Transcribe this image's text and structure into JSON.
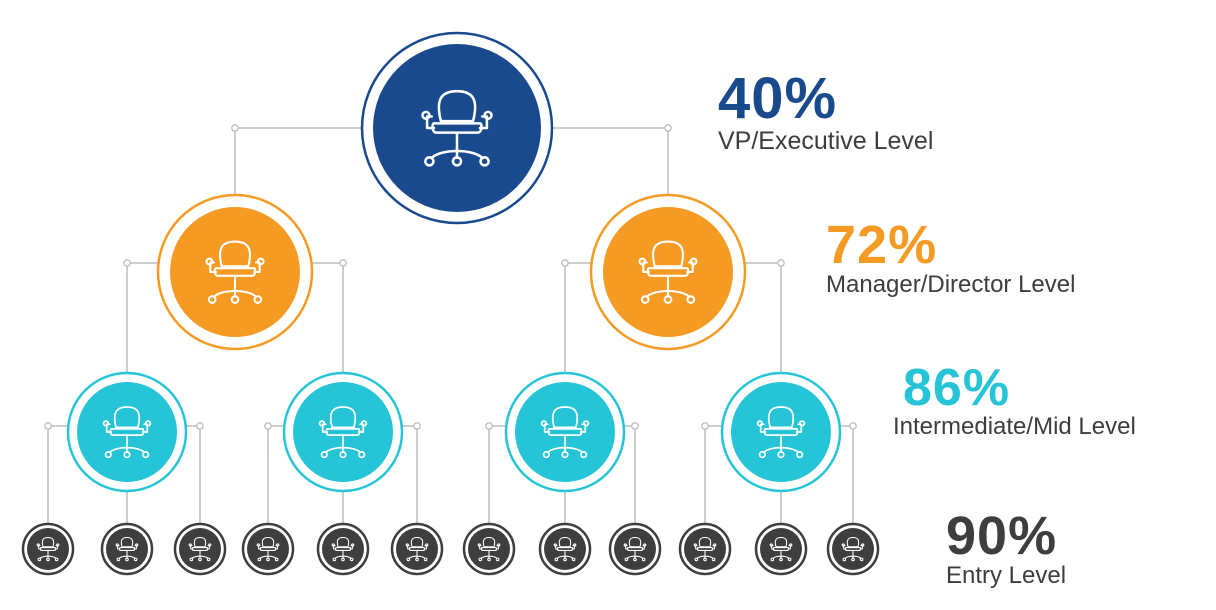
{
  "levels": [
    {
      "percent": "40%",
      "label": "VP/Executive Level",
      "color": "#1a4a8e",
      "count": 1
    },
    {
      "percent": "72%",
      "label": "Manager/Director Level",
      "color": "#f59a23",
      "count": 2
    },
    {
      "percent": "86%",
      "label": "Intermediate/Mid Level",
      "color": "#25c4d6",
      "count": 4
    },
    {
      "percent": "90%",
      "label": "Entry Level",
      "color": "#3e3e3e",
      "count": 12
    }
  ],
  "connector_color": "#bdbdbd",
  "node_icon": "office-chair-icon"
}
